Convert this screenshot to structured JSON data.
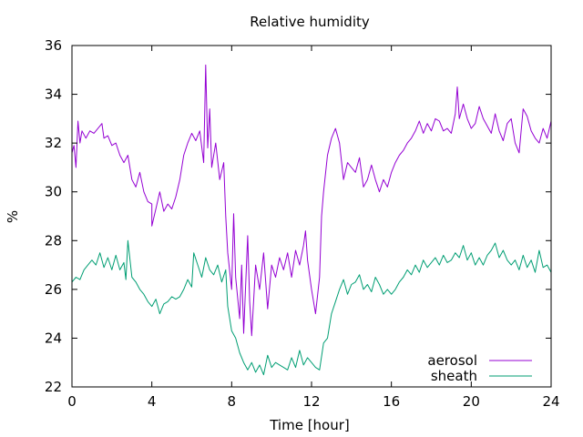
{
  "chart_data": {
    "type": "line",
    "title": "Relative humidity",
    "xlabel": "Time [hour]",
    "ylabel": "%",
    "xlim": [
      0,
      24
    ],
    "ylim": [
      22,
      36
    ],
    "xticks": [
      0,
      4,
      8,
      12,
      16,
      20,
      24
    ],
    "yticks": [
      22,
      24,
      26,
      28,
      30,
      32,
      34,
      36
    ],
    "grid": false,
    "legend_position": "bottom-right",
    "series": [
      {
        "name": "aerosol",
        "color": "#9400d3",
        "points": [
          [
            0.0,
            31.6
          ],
          [
            0.1,
            31.9
          ],
          [
            0.2,
            31.0
          ],
          [
            0.3,
            32.9
          ],
          [
            0.4,
            32.0
          ],
          [
            0.5,
            32.5
          ],
          [
            0.7,
            32.2
          ],
          [
            0.9,
            32.5
          ],
          [
            1.1,
            32.4
          ],
          [
            1.3,
            32.6
          ],
          [
            1.5,
            32.8
          ],
          [
            1.6,
            32.2
          ],
          [
            1.8,
            32.3
          ],
          [
            2.0,
            31.9
          ],
          [
            2.2,
            32.0
          ],
          [
            2.4,
            31.5
          ],
          [
            2.6,
            31.2
          ],
          [
            2.8,
            31.5
          ],
          [
            3.0,
            30.5
          ],
          [
            3.2,
            30.2
          ],
          [
            3.4,
            30.8
          ],
          [
            3.6,
            30.0
          ],
          [
            3.8,
            29.6
          ],
          [
            4.0,
            29.5
          ],
          [
            4.0,
            28.6
          ],
          [
            4.2,
            29.3
          ],
          [
            4.4,
            30.0
          ],
          [
            4.6,
            29.2
          ],
          [
            4.8,
            29.5
          ],
          [
            5.0,
            29.3
          ],
          [
            5.2,
            29.8
          ],
          [
            5.4,
            30.5
          ],
          [
            5.6,
            31.5
          ],
          [
            5.8,
            32.0
          ],
          [
            6.0,
            32.4
          ],
          [
            6.2,
            32.1
          ],
          [
            6.4,
            32.5
          ],
          [
            6.6,
            31.2
          ],
          [
            6.7,
            35.2
          ],
          [
            6.8,
            31.8
          ],
          [
            6.9,
            33.4
          ],
          [
            7.0,
            31.0
          ],
          [
            7.2,
            32.0
          ],
          [
            7.4,
            30.5
          ],
          [
            7.6,
            31.2
          ],
          [
            7.7,
            29.0
          ],
          [
            7.8,
            27.5
          ],
          [
            8.0,
            26.0
          ],
          [
            8.1,
            29.1
          ],
          [
            8.2,
            26.5
          ],
          [
            8.4,
            24.8
          ],
          [
            8.5,
            27.0
          ],
          [
            8.6,
            24.2
          ],
          [
            8.8,
            28.2
          ],
          [
            8.9,
            25.5
          ],
          [
            9.0,
            24.1
          ],
          [
            9.2,
            27.0
          ],
          [
            9.4,
            26.0
          ],
          [
            9.6,
            27.5
          ],
          [
            9.8,
            25.2
          ],
          [
            10.0,
            27.0
          ],
          [
            10.2,
            26.5
          ],
          [
            10.4,
            27.3
          ],
          [
            10.6,
            26.8
          ],
          [
            10.8,
            27.5
          ],
          [
            11.0,
            26.5
          ],
          [
            11.2,
            27.6
          ],
          [
            11.4,
            27.0
          ],
          [
            11.6,
            27.8
          ],
          [
            11.7,
            28.4
          ],
          [
            11.8,
            27.2
          ],
          [
            12.0,
            26.0
          ],
          [
            12.2,
            25.0
          ],
          [
            12.4,
            26.5
          ],
          [
            12.5,
            29.0
          ],
          [
            12.6,
            30.0
          ],
          [
            12.8,
            31.5
          ],
          [
            13.0,
            32.2
          ],
          [
            13.2,
            32.6
          ],
          [
            13.4,
            32.0
          ],
          [
            13.6,
            30.5
          ],
          [
            13.8,
            31.2
          ],
          [
            14.0,
            31.0
          ],
          [
            14.2,
            30.8
          ],
          [
            14.4,
            31.4
          ],
          [
            14.6,
            30.2
          ],
          [
            14.8,
            30.5
          ],
          [
            15.0,
            31.1
          ],
          [
            15.2,
            30.5
          ],
          [
            15.4,
            30.0
          ],
          [
            15.6,
            30.5
          ],
          [
            15.8,
            30.2
          ],
          [
            16.0,
            30.8
          ],
          [
            16.2,
            31.2
          ],
          [
            16.4,
            31.5
          ],
          [
            16.6,
            31.7
          ],
          [
            16.8,
            32.0
          ],
          [
            17.0,
            32.2
          ],
          [
            17.2,
            32.5
          ],
          [
            17.4,
            32.9
          ],
          [
            17.6,
            32.4
          ],
          [
            17.8,
            32.8
          ],
          [
            18.0,
            32.5
          ],
          [
            18.2,
            33.0
          ],
          [
            18.4,
            32.9
          ],
          [
            18.6,
            32.5
          ],
          [
            18.8,
            32.6
          ],
          [
            19.0,
            32.4
          ],
          [
            19.2,
            33.2
          ],
          [
            19.3,
            34.3
          ],
          [
            19.4,
            33.0
          ],
          [
            19.6,
            33.6
          ],
          [
            19.8,
            33.0
          ],
          [
            20.0,
            32.6
          ],
          [
            20.2,
            32.8
          ],
          [
            20.4,
            33.5
          ],
          [
            20.6,
            33.0
          ],
          [
            20.8,
            32.7
          ],
          [
            21.0,
            32.4
          ],
          [
            21.2,
            33.2
          ],
          [
            21.4,
            32.5
          ],
          [
            21.6,
            32.1
          ],
          [
            21.8,
            32.8
          ],
          [
            22.0,
            33.0
          ],
          [
            22.2,
            32.0
          ],
          [
            22.4,
            31.6
          ],
          [
            22.6,
            33.4
          ],
          [
            22.8,
            33.1
          ],
          [
            23.0,
            32.5
          ],
          [
            23.2,
            32.2
          ],
          [
            23.4,
            32.0
          ],
          [
            23.6,
            32.6
          ],
          [
            23.8,
            32.2
          ],
          [
            24.0,
            32.9
          ]
        ]
      },
      {
        "name": "sheath",
        "color": "#009e73",
        "points": [
          [
            0.0,
            26.3
          ],
          [
            0.2,
            26.5
          ],
          [
            0.4,
            26.4
          ],
          [
            0.6,
            26.8
          ],
          [
            0.8,
            27.0
          ],
          [
            1.0,
            27.2
          ],
          [
            1.2,
            27.0
          ],
          [
            1.4,
            27.5
          ],
          [
            1.6,
            26.9
          ],
          [
            1.8,
            27.3
          ],
          [
            2.0,
            26.8
          ],
          [
            2.2,
            27.4
          ],
          [
            2.4,
            26.8
          ],
          [
            2.6,
            27.1
          ],
          [
            2.7,
            26.4
          ],
          [
            2.8,
            28.0
          ],
          [
            3.0,
            26.5
          ],
          [
            3.2,
            26.3
          ],
          [
            3.4,
            26.0
          ],
          [
            3.6,
            25.8
          ],
          [
            3.8,
            25.5
          ],
          [
            4.0,
            25.3
          ],
          [
            4.2,
            25.6
          ],
          [
            4.4,
            25.0
          ],
          [
            4.6,
            25.4
          ],
          [
            4.8,
            25.5
          ],
          [
            5.0,
            25.7
          ],
          [
            5.2,
            25.6
          ],
          [
            5.4,
            25.7
          ],
          [
            5.6,
            26.0
          ],
          [
            5.8,
            26.4
          ],
          [
            6.0,
            26.1
          ],
          [
            6.1,
            27.5
          ],
          [
            6.3,
            27.0
          ],
          [
            6.5,
            26.5
          ],
          [
            6.7,
            27.3
          ],
          [
            6.9,
            26.8
          ],
          [
            7.1,
            26.6
          ],
          [
            7.3,
            27.0
          ],
          [
            7.5,
            26.3
          ],
          [
            7.7,
            26.8
          ],
          [
            7.8,
            25.3
          ],
          [
            8.0,
            24.3
          ],
          [
            8.2,
            24.0
          ],
          [
            8.4,
            23.4
          ],
          [
            8.6,
            23.0
          ],
          [
            8.8,
            22.7
          ],
          [
            9.0,
            23.0
          ],
          [
            9.2,
            22.6
          ],
          [
            9.4,
            22.9
          ],
          [
            9.6,
            22.5
          ],
          [
            9.8,
            23.3
          ],
          [
            10.0,
            22.8
          ],
          [
            10.2,
            23.0
          ],
          [
            10.4,
            22.9
          ],
          [
            10.6,
            22.8
          ],
          [
            10.8,
            22.7
          ],
          [
            11.0,
            23.2
          ],
          [
            11.2,
            22.8
          ],
          [
            11.4,
            23.5
          ],
          [
            11.6,
            22.9
          ],
          [
            11.8,
            23.2
          ],
          [
            12.0,
            23.0
          ],
          [
            12.2,
            22.8
          ],
          [
            12.4,
            22.7
          ],
          [
            12.6,
            23.8
          ],
          [
            12.8,
            24.0
          ],
          [
            13.0,
            25.0
          ],
          [
            13.2,
            25.5
          ],
          [
            13.4,
            26.0
          ],
          [
            13.6,
            26.4
          ],
          [
            13.8,
            25.8
          ],
          [
            14.0,
            26.2
          ],
          [
            14.2,
            26.3
          ],
          [
            14.4,
            26.6
          ],
          [
            14.6,
            26.0
          ],
          [
            14.8,
            26.2
          ],
          [
            15.0,
            25.9
          ],
          [
            15.2,
            26.5
          ],
          [
            15.4,
            26.2
          ],
          [
            15.6,
            25.8
          ],
          [
            15.8,
            26.0
          ],
          [
            16.0,
            25.8
          ],
          [
            16.2,
            26.0
          ],
          [
            16.4,
            26.3
          ],
          [
            16.6,
            26.5
          ],
          [
            16.8,
            26.8
          ],
          [
            17.0,
            26.6
          ],
          [
            17.2,
            27.0
          ],
          [
            17.4,
            26.7
          ],
          [
            17.6,
            27.2
          ],
          [
            17.8,
            26.9
          ],
          [
            18.0,
            27.1
          ],
          [
            18.2,
            27.3
          ],
          [
            18.4,
            27.0
          ],
          [
            18.6,
            27.4
          ],
          [
            18.8,
            27.1
          ],
          [
            19.0,
            27.2
          ],
          [
            19.2,
            27.5
          ],
          [
            19.4,
            27.3
          ],
          [
            19.6,
            27.8
          ],
          [
            19.8,
            27.2
          ],
          [
            20.0,
            27.5
          ],
          [
            20.2,
            27.0
          ],
          [
            20.4,
            27.3
          ],
          [
            20.6,
            27.0
          ],
          [
            20.8,
            27.4
          ],
          [
            21.0,
            27.6
          ],
          [
            21.2,
            27.9
          ],
          [
            21.4,
            27.3
          ],
          [
            21.6,
            27.6
          ],
          [
            21.8,
            27.2
          ],
          [
            22.0,
            27.0
          ],
          [
            22.2,
            27.2
          ],
          [
            22.4,
            26.8
          ],
          [
            22.6,
            27.4
          ],
          [
            22.8,
            26.9
          ],
          [
            23.0,
            27.2
          ],
          [
            23.2,
            26.7
          ],
          [
            23.4,
            27.6
          ],
          [
            23.6,
            26.9
          ],
          [
            23.8,
            27.0
          ],
          [
            24.0,
            26.7
          ]
        ]
      }
    ]
  }
}
